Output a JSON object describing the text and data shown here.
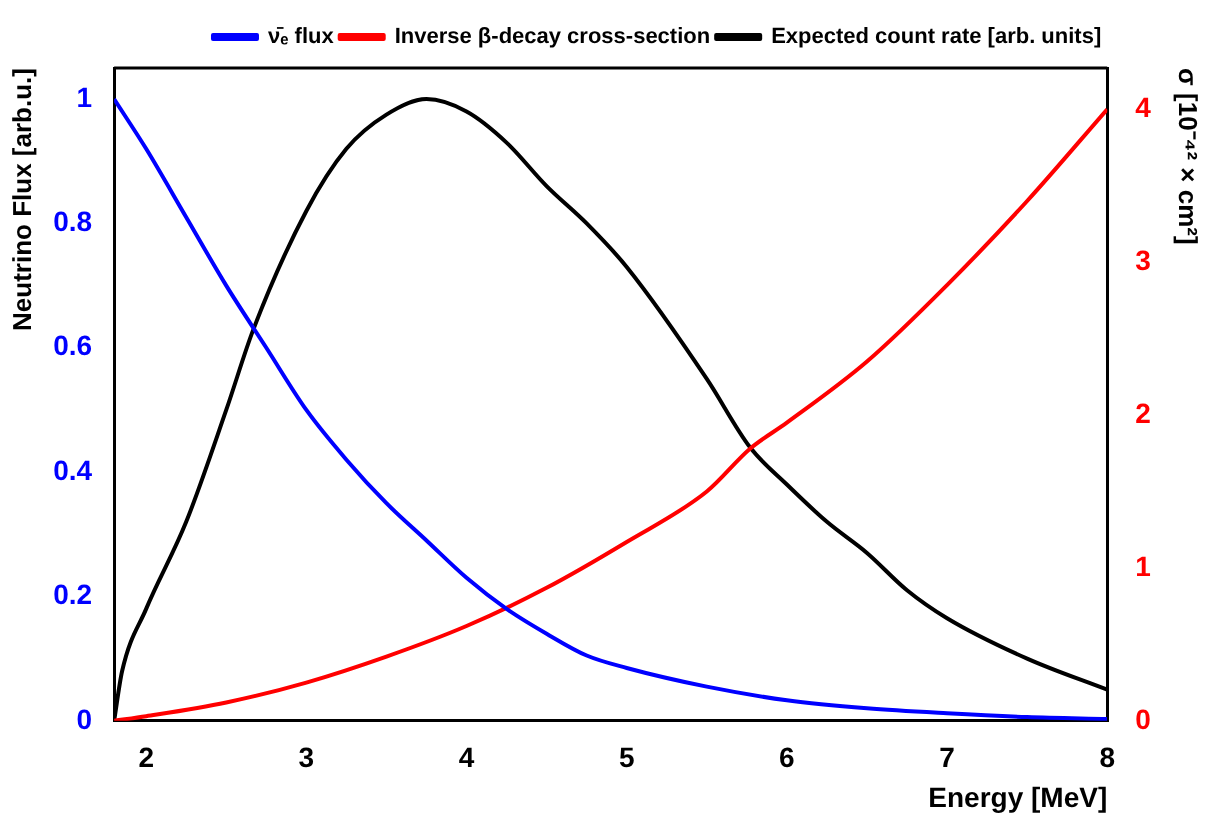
{
  "chart_data": {
    "type": "line",
    "xlabel": "Energy [MeV]",
    "ylabel": "Neutrino Flux [arb.u.]",
    "y2label": "σ [10⁻⁴² × cm²]",
    "xlim": [
      1.8,
      8
    ],
    "xticks": [
      2,
      3,
      4,
      5,
      6,
      7,
      8
    ],
    "ylim": [
      0,
      1.05
    ],
    "yticks": [
      0,
      0.2,
      0.4,
      0.6,
      0.8,
      1
    ],
    "y2lim": [
      0,
      4.27
    ],
    "y2ticks": [
      0,
      1,
      2,
      3,
      4
    ],
    "grid": false,
    "legend": "top right",
    "marker": "none",
    "line_style": "solid",
    "series": [
      {
        "name": "ν̄ₑ flux",
        "color": "#0000ff",
        "x": [
          1.8,
          2,
          2.25,
          2.5,
          2.75,
          3,
          3.25,
          3.5,
          3.75,
          4,
          4.25,
          4.5,
          4.75,
          5,
          5.5,
          6,
          6.5,
          7,
          7.5,
          8
        ],
        "values": [
          1,
          0.92,
          0.81,
          0.7,
          0.6,
          0.5,
          0.42,
          0.35,
          0.29,
          0.23,
          0.18,
          0.14,
          0.105,
          0.085,
          0.055,
          0.033,
          0.02,
          0.012,
          0.006,
          0.003
        ]
      },
      {
        "name": "Inverse β-decay cross-section",
        "color": "#ff0000",
        "axis": "y2",
        "x": [
          1.8,
          2,
          2.5,
          3,
          3.5,
          4,
          4.5,
          5,
          5.5,
          5.77,
          6,
          6.5,
          7,
          7.5,
          8
        ],
        "values": [
          0,
          0.03,
          0.12,
          0.25,
          0.42,
          0.62,
          0.87,
          1.17,
          1.5,
          1.78,
          1.95,
          2.35,
          2.85,
          3.4,
          4
        ]
      },
      {
        "name": "Expected count rate [arb. units]",
        "color": "#000000",
        "x": [
          1.8,
          1.85,
          2,
          2.25,
          2.5,
          2.67,
          3,
          3.25,
          3.5,
          3.75,
          4,
          4.25,
          4.5,
          4.75,
          5,
          5.5,
          5.77,
          6,
          6.25,
          6.5,
          6.75,
          7,
          7.5,
          8
        ],
        "values": [
          0,
          0.08,
          0.18,
          0.32,
          0.5,
          0.63,
          0.82,
          0.92,
          0.975,
          1,
          0.98,
          0.93,
          0.86,
          0.8,
          0.73,
          0.55,
          0.44,
          0.38,
          0.32,
          0.27,
          0.21,
          0.165,
          0.1,
          0.05
        ]
      }
    ]
  }
}
